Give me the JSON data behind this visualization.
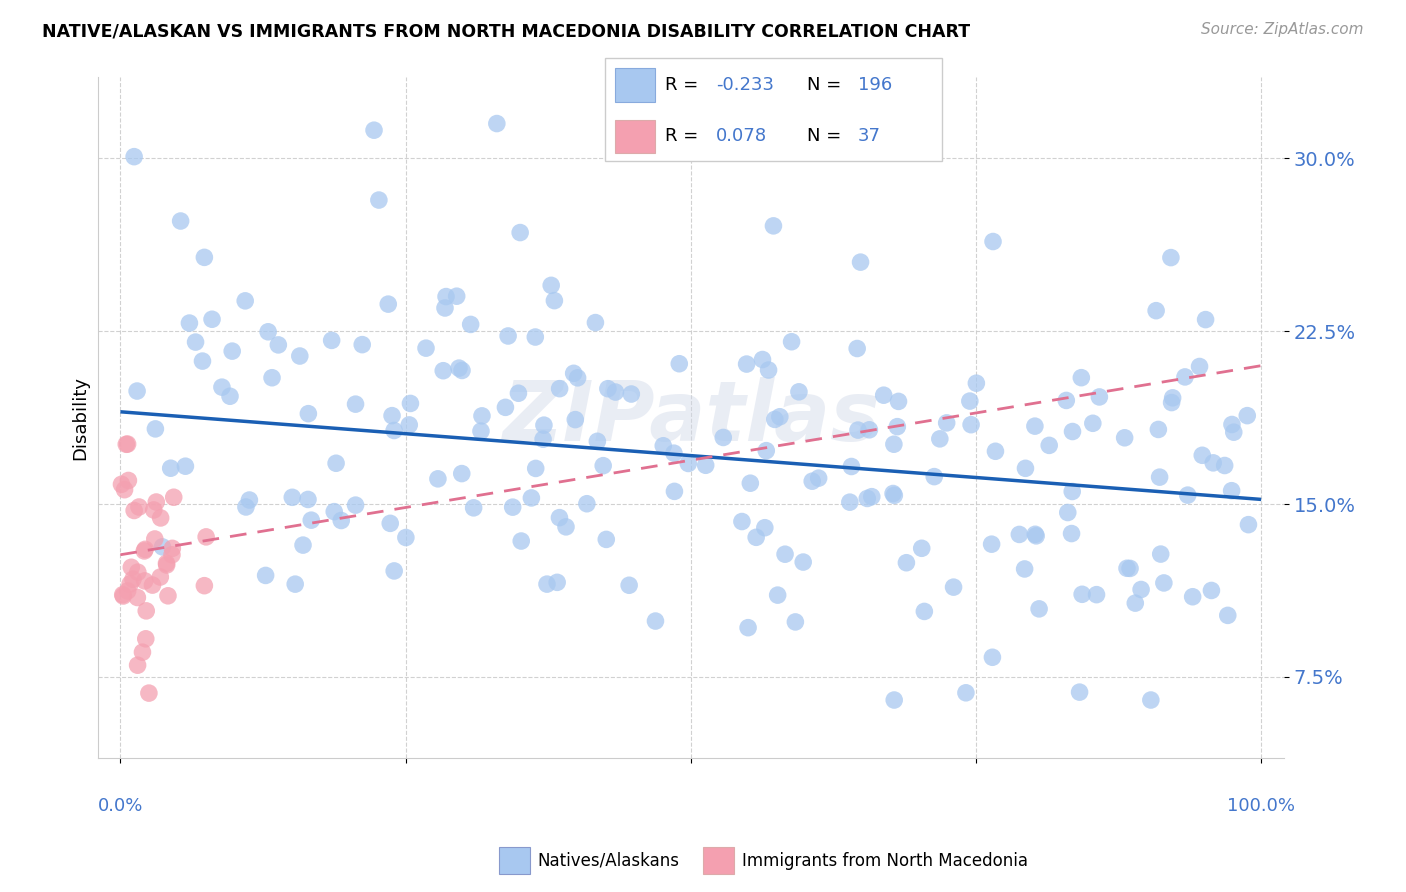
{
  "title": "NATIVE/ALASKAN VS IMMIGRANTS FROM NORTH MACEDONIA DISABILITY CORRELATION CHART",
  "source": "Source: ZipAtlas.com",
  "ylabel": "Disability",
  "yticks": [
    0.075,
    0.15,
    0.225,
    0.3
  ],
  "ytick_labels": [
    "7.5%",
    "15.0%",
    "22.5%",
    "30.0%"
  ],
  "xlim": [
    -0.02,
    1.02
  ],
  "ylim": [
    0.04,
    0.335
  ],
  "legend_R_native": "-0.233",
  "legend_N_native": "196",
  "legend_R_immig": "0.078",
  "legend_N_immig": "37",
  "native_color": "#a8c8f0",
  "immig_color": "#f4a0b0",
  "native_line_color": "#1a5fb4",
  "immig_line_color": "#e07090",
  "background_color": "#ffffff",
  "watermark": "ZIPatlas",
  "seed": 42,
  "native_intercept": 0.19,
  "native_slope": -0.038,
  "immig_intercept": 0.128,
  "immig_slope": 0.082,
  "grid_color": "#cccccc",
  "tick_color": "#4477cc",
  "xlabel_color": "#4477cc"
}
